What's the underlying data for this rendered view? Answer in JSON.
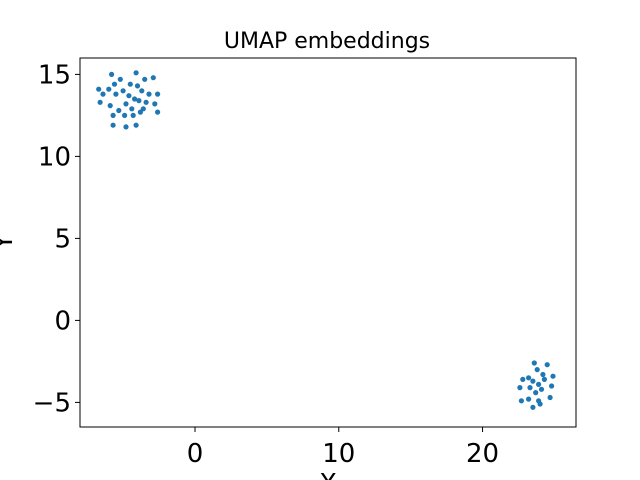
{
  "chart_data": {
    "type": "scatter",
    "title": "UMAP embeddings",
    "xlabel": "X",
    "ylabel": "Y",
    "xlim": [
      -8,
      26.5
    ],
    "ylim": [
      -6.5,
      16
    ],
    "xticks": [
      0,
      10,
      20
    ],
    "yticks": [
      15,
      10,
      5,
      0,
      -5
    ],
    "grid": false,
    "series": [
      {
        "color": "#1f77b4",
        "points": [
          [
            -5.8,
            15.0
          ],
          [
            -4.1,
            15.1
          ],
          [
            -5.2,
            14.7
          ],
          [
            -3.5,
            14.7
          ],
          [
            -2.9,
            14.8
          ],
          [
            -6.0,
            14.1
          ],
          [
            -5.6,
            14.4
          ],
          [
            -4.5,
            14.4
          ],
          [
            -4.0,
            14.3
          ],
          [
            -6.7,
            14.1
          ],
          [
            -5.0,
            14.0
          ],
          [
            -3.7,
            14.0
          ],
          [
            -6.4,
            13.8
          ],
          [
            -5.5,
            13.8
          ],
          [
            -4.6,
            13.7
          ],
          [
            -3.2,
            13.8
          ],
          [
            -2.6,
            13.8
          ],
          [
            -4.2,
            13.5
          ],
          [
            -3.9,
            13.4
          ],
          [
            -6.6,
            13.3
          ],
          [
            -5.9,
            13.1
          ],
          [
            -4.8,
            13.2
          ],
          [
            -3.4,
            13.3
          ],
          [
            -2.8,
            13.2
          ],
          [
            -5.3,
            12.8
          ],
          [
            -4.4,
            12.9
          ],
          [
            -3.6,
            12.9
          ],
          [
            -4.9,
            12.5
          ],
          [
            -4.3,
            12.5
          ],
          [
            -5.7,
            12.5
          ],
          [
            -2.6,
            12.7
          ],
          [
            -5.7,
            11.9
          ],
          [
            -4.8,
            11.8
          ],
          [
            -4.1,
            11.9
          ],
          [
            -3.8,
            12.7
          ],
          [
            23.6,
            -2.6
          ],
          [
            24.5,
            -2.7
          ],
          [
            23.8,
            -3.0
          ],
          [
            23.2,
            -3.5
          ],
          [
            24.2,
            -3.3
          ],
          [
            24.9,
            -3.4
          ],
          [
            22.8,
            -3.6
          ],
          [
            23.5,
            -3.7
          ],
          [
            24.3,
            -3.6
          ],
          [
            23.9,
            -3.9
          ],
          [
            24.1,
            -4.2
          ],
          [
            22.6,
            -4.1
          ],
          [
            23.3,
            -4.1
          ],
          [
            24.8,
            -4.0
          ],
          [
            23.7,
            -4.4
          ],
          [
            24.7,
            -4.7
          ],
          [
            22.7,
            -4.9
          ],
          [
            23.2,
            -4.8
          ],
          [
            23.9,
            -4.9
          ],
          [
            23.5,
            -5.3
          ],
          [
            24.0,
            -5.1
          ]
        ]
      }
    ]
  }
}
